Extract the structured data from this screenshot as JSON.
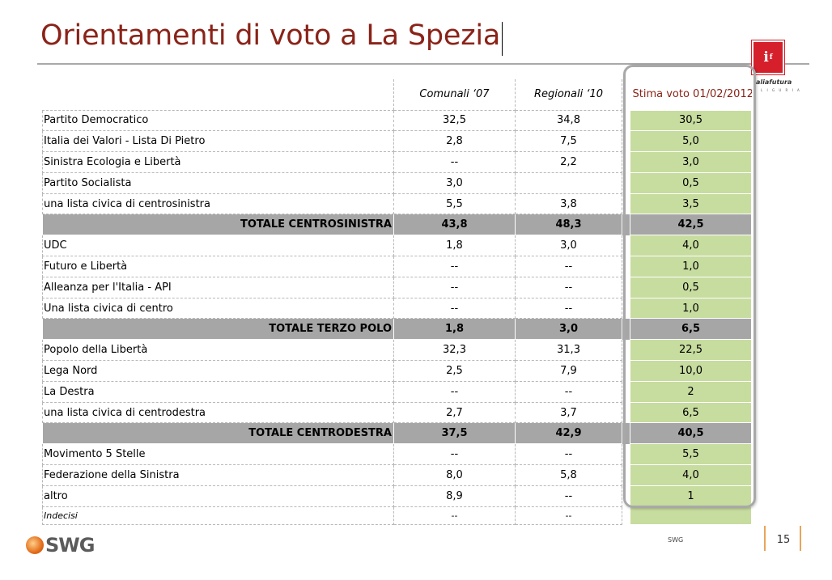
{
  "title": "Orientamenti di voto a La Spezia",
  "logo": {
    "mark": "i",
    "mark_sup": "f",
    "name": "aliafutura",
    "sub": "L I G U R I A"
  },
  "columns": {
    "c1": "Comunali ‘07",
    "c2": "Regionali ‘10",
    "c3": "Stima voto 01/02/2012"
  },
  "rows": [
    {
      "label": "Partito Democratico",
      "c1": "32,5",
      "c2": "34,8",
      "c3": "30,5"
    },
    {
      "label": "Italia dei Valori - Lista Di Pietro",
      "c1": "2,8",
      "c2": "7,5",
      "c3": "5,0"
    },
    {
      "label": "Sinistra Ecologia e Libertà",
      "c1": "--",
      "c2": "2,2",
      "c3": "3,0"
    },
    {
      "label": "Partito Socialista",
      "c1": "3,0",
      "c2": "",
      "c3": "0,5"
    },
    {
      "label": "una lista civica di centrosinistra",
      "c1": "5,5",
      "c2": "3,8",
      "c3": "3,5"
    },
    {
      "label": "TOTALE CENTROSINISTRA",
      "c1": "43,8",
      "c2": "48,3",
      "c3": "42,5"
    },
    {
      "label": "UDC",
      "c1": "1,8",
      "c2": "3,0",
      "c3": "4,0"
    },
    {
      "label": "Futuro e Libertà",
      "c1": "--",
      "c2": "--",
      "c3": "1,0"
    },
    {
      "label": "Alleanza per l'Italia - API",
      "c1": "--",
      "c2": "--",
      "c3": "0,5"
    },
    {
      "label": "Una lista civica di centro",
      "c1": "--",
      "c2": "--",
      "c3": "1,0"
    },
    {
      "label": "TOTALE TERZO POLO",
      "c1": "1,8",
      "c2": "3,0",
      "c3": "6,5"
    },
    {
      "label": "Popolo della Libertà",
      "c1": "32,3",
      "c2": "31,3",
      "c3": "22,5"
    },
    {
      "label": "Lega Nord",
      "c1": "2,5",
      "c2": "7,9",
      "c3": "10,0"
    },
    {
      "label": "La Destra",
      "c1": "--",
      "c2": "--",
      "c3": "2"
    },
    {
      "label": "una lista civica di centrodestra",
      "c1": "2,7",
      "c2": "3,7",
      "c3": "6,5"
    },
    {
      "label": "TOTALE CENTRODESTRA",
      "c1": "37,5",
      "c2": "42,9",
      "c3": "40,5"
    },
    {
      "label": "Movimento 5 Stelle",
      "c1": "--",
      "c2": "--",
      "c3": "5,5"
    },
    {
      "label": "Federazione della Sinistra",
      "c1": "8,0",
      "c2": "5,8",
      "c3": "4,0"
    },
    {
      "label": "altro",
      "c1": "8,9",
      "c2": "--",
      "c3": "1"
    },
    {
      "label": "Indecisi",
      "c1": "--",
      "c2": "--",
      "c3": ""
    }
  ],
  "footer": {
    "brand": "SWG",
    "source": "SWG",
    "page": "15"
  },
  "colors": {
    "title": "#8a2318",
    "stima_fill": "#c7dc9f",
    "total_fill": "#a6a6a6",
    "logo_red": "#d51f2b"
  }
}
